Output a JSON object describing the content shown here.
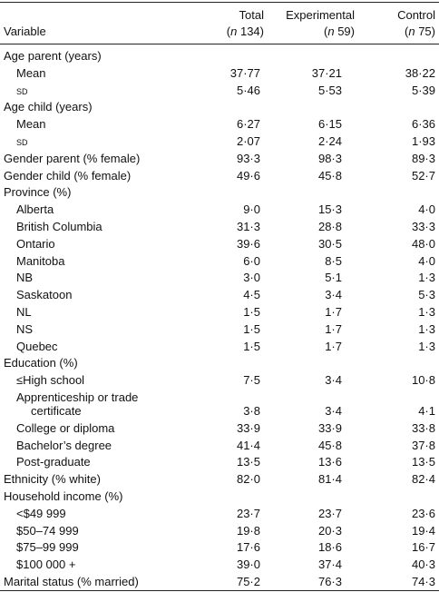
{
  "table": {
    "columns": [
      {
        "name": "Variable"
      },
      {
        "name": "Total",
        "count": [
          "(",
          "n",
          " 134)"
        ]
      },
      {
        "name": "Experimental",
        "count": [
          "(",
          "n",
          " 59)"
        ]
      },
      {
        "name": "Control",
        "count": [
          "(",
          "n",
          " 75)"
        ]
      }
    ],
    "rows": [
      {
        "label": "Age parent (years)",
        "indent": 0,
        "values": []
      },
      {
        "label": "Mean",
        "indent": 1,
        "values": [
          "37·77",
          "37·21",
          "38·22"
        ]
      },
      {
        "label": "sd",
        "indent": 1,
        "caps": true,
        "values": [
          "5·46",
          "5·53",
          "5·39"
        ]
      },
      {
        "label": "Age child (years)",
        "indent": 0,
        "values": []
      },
      {
        "label": "Mean",
        "indent": 1,
        "values": [
          "6·27",
          "6·15",
          "6·36"
        ]
      },
      {
        "label": "sd",
        "indent": 1,
        "caps": true,
        "values": [
          "2·07",
          "2·24",
          "1·93"
        ]
      },
      {
        "label": "Gender parent (% female)",
        "indent": 0,
        "values": [
          "93·3",
          "98·3",
          "89·3"
        ]
      },
      {
        "label": "Gender child (% female)",
        "indent": 0,
        "values": [
          "49·6",
          "45·8",
          "52·7"
        ]
      },
      {
        "label": "Province (%)",
        "indent": 0,
        "values": []
      },
      {
        "label": "Alberta",
        "indent": 1,
        "values": [
          "9·0",
          "15·3",
          "4·0"
        ]
      },
      {
        "label": "British Columbia",
        "indent": 1,
        "values": [
          "31·3",
          "28·8",
          "33·3"
        ]
      },
      {
        "label": "Ontario",
        "indent": 1,
        "values": [
          "39·6",
          "30·5",
          "48·0"
        ]
      },
      {
        "label": "Manitoba",
        "indent": 1,
        "values": [
          "6·0",
          "8·5",
          "4·0"
        ]
      },
      {
        "label": "NB",
        "indent": 1,
        "values": [
          "3·0",
          "5·1",
          "1·3"
        ]
      },
      {
        "label": "Saskatoon",
        "indent": 1,
        "values": [
          "4·5",
          "3·4",
          "5·3"
        ]
      },
      {
        "label": "NL",
        "indent": 1,
        "values": [
          "1·5",
          "1·7",
          "1·3"
        ]
      },
      {
        "label": "NS",
        "indent": 1,
        "values": [
          "1·5",
          "1·7",
          "1·3"
        ]
      },
      {
        "label": "Quebec",
        "indent": 1,
        "values": [
          "1·5",
          "1·7",
          "1·3"
        ]
      },
      {
        "label": "Education (%)",
        "indent": 0,
        "values": []
      },
      {
        "label": "≤High school",
        "indent": 1,
        "values": [
          "7·5",
          "3·4",
          "10·8"
        ]
      },
      {
        "label": "Apprenticeship or trade certificate",
        "indent": 1,
        "values": [
          "3·8",
          "3·4",
          "4·1"
        ]
      },
      {
        "label": "College or diploma",
        "indent": 1,
        "values": [
          "33·9",
          "33·9",
          "33·8"
        ]
      },
      {
        "label": "Bachelor’s degree",
        "indent": 1,
        "values": [
          "41·4",
          "45·8",
          "37·8"
        ]
      },
      {
        "label": "Post-graduate",
        "indent": 1,
        "values": [
          "13·5",
          "13·6",
          "13·5"
        ]
      },
      {
        "label": "Ethnicity (% white)",
        "indent": 0,
        "values": [
          "82·0",
          "81·4",
          "82·4"
        ]
      },
      {
        "label": "Household income (%)",
        "indent": 0,
        "values": []
      },
      {
        "label": "<$49 999",
        "indent": 1,
        "values": [
          "23·7",
          "23·7",
          "23·6"
        ]
      },
      {
        "label": "$50–74 999",
        "indent": 1,
        "values": [
          "19·8",
          "20·3",
          "19·4"
        ]
      },
      {
        "label": "$75–99 999",
        "indent": 1,
        "values": [
          "17·6",
          "18·6",
          "16·7"
        ]
      },
      {
        "label": "$100 000 +",
        "indent": 1,
        "values": [
          "39·0",
          "37·4",
          "40·3"
        ]
      },
      {
        "label": "Marital status (% married)",
        "indent": 0,
        "values": [
          "75·2",
          "76·3",
          "74·3"
        ]
      }
    ]
  }
}
